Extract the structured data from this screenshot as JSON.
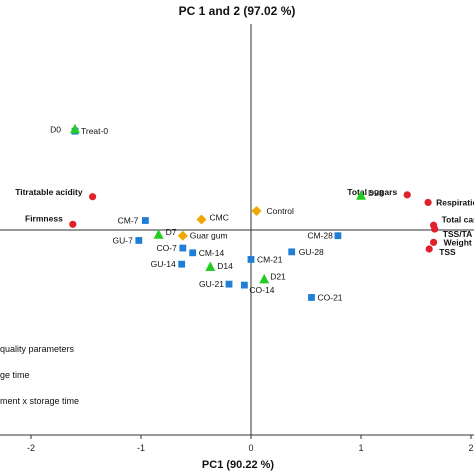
{
  "chart_data": {
    "type": "scatter",
    "title": "PC 1 and 2 (97.02 %)",
    "xlabel": "PC1 (90.22 %)",
    "ylabel": "",
    "xlim": [
      -2.5,
      2.1
    ],
    "ylim": [
      -1.9,
      1.55
    ],
    "x_ticks": [
      "-2",
      "-1",
      "0",
      "1",
      "2"
    ],
    "series": [
      {
        "marker": "circle",
        "color": "#e0202a",
        "points": [
          {
            "label": "Titratable acidity",
            "x": -1.44,
            "y": 0.35
          },
          {
            "label": "Firmness",
            "x": -1.62,
            "y": 0.06
          },
          {
            "label": "Total sugars",
            "x": 1.42,
            "y": 0.37
          },
          {
            "label": "Respiration rate",
            "x": 1.61,
            "y": 0.29
          },
          {
            "label": "Total carotenoids",
            "x": 1.66,
            "y": 0.05
          },
          {
            "label": "TSS/TA ratio",
            "x": 1.67,
            "y": 0.01
          },
          {
            "label": "Weight loss",
            "x": 1.66,
            "y": -0.13
          },
          {
            "label": "TSS",
            "x": 1.62,
            "y": -0.2
          }
        ]
      },
      {
        "marker": "square",
        "color": "#1f7fd6",
        "points": [
          {
            "label": "Treat-0",
            "x": -1.6,
            "y": 1.04
          },
          {
            "label": "CM-7",
            "x": -0.96,
            "y": 0.1
          },
          {
            "label": "GU-7",
            "x": -1.02,
            "y": -0.11
          },
          {
            "label": "CO-7",
            "x": -0.62,
            "y": -0.19
          },
          {
            "label": "CM-14",
            "x": -0.53,
            "y": -0.24
          },
          {
            "label": "GU-14",
            "x": -0.63,
            "y": -0.36
          },
          {
            "label": "CM-21",
            "x": 0.0,
            "y": -0.31
          },
          {
            "label": "GU-28",
            "x": 0.37,
            "y": -0.23
          },
          {
            "label": "CM-28",
            "x": 0.79,
            "y": -0.06
          },
          {
            "label": "GU-21",
            "x": -0.2,
            "y": -0.57
          },
          {
            "label": "CO-14",
            "x": -0.06,
            "y": -0.58
          },
          {
            "label": "CO-21",
            "x": 0.55,
            "y": -0.71
          }
        ]
      },
      {
        "marker": "triangle",
        "color": "#22cc22",
        "points": [
          {
            "label": "D0",
            "x": -1.6,
            "y": 1.06
          },
          {
            "label": "D7",
            "x": -0.84,
            "y": -0.05
          },
          {
            "label": "D14",
            "x": -0.37,
            "y": -0.39
          },
          {
            "label": "D21",
            "x": 0.12,
            "y": -0.52
          },
          {
            "label": "D28",
            "x": 1.0,
            "y": 0.36
          }
        ]
      },
      {
        "marker": "diamond",
        "color": "#f0a800",
        "points": [
          {
            "label": "CMC",
            "x": -0.45,
            "y": 0.11
          },
          {
            "label": "Control",
            "x": 0.05,
            "y": 0.2
          },
          {
            "label": "Guar gum",
            "x": -0.62,
            "y": -0.06
          }
        ]
      }
    ],
    "legend": {
      "placement": "bottom-left",
      "entries": [
        "quality parameters",
        "ge time",
        "ment x storage time"
      ]
    }
  }
}
